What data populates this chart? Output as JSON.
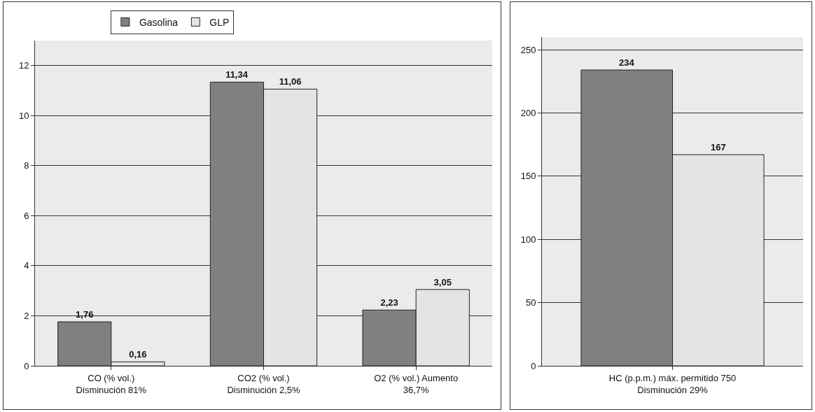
{
  "chart_data": [
    {
      "type": "bar",
      "categories": [
        "CO (% vol.)\nDisminución 81%",
        "CO2 (% vol.)\nDisminución 2,5%",
        "O2 (% vol.) Aumento\n36,7%"
      ],
      "series": [
        {
          "name": "Gasolina",
          "color": "#808080",
          "values": [
            1.76,
            11.34,
            2.23
          ]
        },
        {
          "name": "GLP",
          "color": "#e4e4e4",
          "values": [
            0.16,
            11.06,
            3.05
          ]
        }
      ],
      "value_labels": [
        [
          "1,76",
          "11,34",
          "2,23"
        ],
        [
          "0,16",
          "11,06",
          "3,05"
        ]
      ],
      "ylim": [
        0,
        13
      ],
      "yticks": [
        0,
        2,
        4,
        6,
        8,
        10,
        12
      ],
      "grid": "y",
      "legend": "top"
    },
    {
      "type": "bar",
      "categories": [
        "HC (p.p.m.) máx. permitido 750\nDisminución 29%"
      ],
      "series": [
        {
          "color": "#808080",
          "values": [
            234
          ]
        },
        {
          "color": "#e4e4e4",
          "values": [
            167
          ]
        }
      ],
      "value_labels": [
        [
          "234"
        ],
        [
          "167"
        ]
      ],
      "ylim": [
        0,
        260
      ],
      "yticks": [
        0,
        50,
        100,
        150,
        200,
        250
      ],
      "grid": "y",
      "legend": false
    }
  ]
}
